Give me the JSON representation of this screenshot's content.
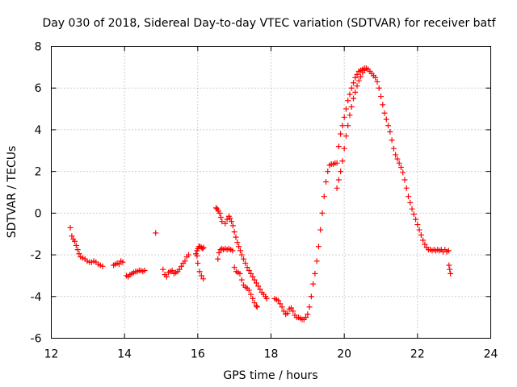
{
  "chart_data": {
    "type": "scatter",
    "title": "Day 030 of 2018, Sidereal Day-to-day VTEC variation (SDTVAR) for receiver batf",
    "xlabel": "GPS time / hours",
    "ylabel": "SDTVAR / TECUs",
    "xlim": [
      12,
      24
    ],
    "ylim": [
      -6,
      8
    ],
    "xticks": [
      "12",
      "14",
      "16",
      "18",
      "20",
      "22",
      "24"
    ],
    "yticks": [
      "-6",
      "-4",
      "-2",
      "0",
      "2",
      "4",
      "6",
      "8"
    ],
    "grid": true,
    "marker": "plus",
    "color": "#ff0000",
    "series": [
      {
        "name": "SDTVAR",
        "x": [
          12.52,
          12.56,
          12.6,
          12.64,
          12.68,
          12.72,
          12.76,
          12.8,
          12.86,
          12.92,
          12.98,
          13.04,
          13.1,
          13.16,
          13.22,
          13.28,
          13.34,
          13.4,
          13.7,
          13.75,
          13.8,
          13.85,
          13.9,
          13.95,
          14.05,
          14.1,
          14.15,
          14.2,
          14.25,
          14.3,
          14.35,
          14.4,
          14.45,
          14.5,
          14.55,
          14.85,
          15.05,
          15.1,
          15.15,
          15.2,
          15.25,
          15.3,
          15.35,
          15.4,
          15.45,
          15.5,
          15.55,
          15.6,
          15.65,
          15.7,
          15.75,
          15.95,
          15.98,
          16.0,
          16.03,
          16.06,
          16.1,
          16.13,
          16.16,
          15.98,
          16.0,
          16.05,
          16.1,
          16.15,
          16.5,
          16.53,
          16.56,
          16.6,
          16.63,
          16.66,
          16.55,
          16.58,
          16.62,
          16.66,
          16.7,
          16.75,
          16.8,
          16.85,
          16.9,
          16.95,
          16.75,
          16.8,
          16.85,
          16.88,
          16.92,
          16.96,
          17.0,
          17.04,
          17.08,
          17.12,
          17.16,
          17.2,
          17.25,
          17.3,
          17.35,
          17.4,
          17.45,
          17.5,
          17.55,
          17.6,
          17.65,
          17.7,
          17.75,
          17.8,
          17.85,
          17.88,
          17.0,
          17.05,
          17.1,
          17.15,
          17.2,
          17.25,
          17.3,
          17.35,
          17.4,
          17.45,
          17.5,
          17.55,
          17.6,
          17.62,
          18.1,
          18.15,
          18.2,
          18.25,
          18.3,
          18.35,
          18.4,
          18.45,
          18.5,
          18.55,
          18.6,
          18.65,
          18.7,
          18.75,
          18.8,
          18.85,
          18.9,
          18.95,
          19.0,
          19.05,
          19.1,
          19.15,
          19.2,
          19.25,
          19.3,
          19.35,
          19.4,
          19.45,
          19.5,
          19.55,
          19.6,
          19.65,
          19.7,
          19.75,
          19.8,
          19.85,
          19.9,
          19.95,
          20.0,
          20.05,
          20.1,
          20.15,
          20.2,
          20.25,
          20.3,
          20.35,
          20.4,
          20.45,
          20.5,
          20.55,
          20.6,
          19.8,
          19.85,
          19.9,
          19.95,
          20.0,
          20.05,
          20.1,
          20.15,
          20.2,
          20.25,
          20.3,
          20.35,
          20.4,
          20.45,
          20.5,
          20.55,
          20.65,
          20.7,
          20.75,
          20.8,
          20.85,
          20.9,
          20.95,
          21.0,
          21.05,
          21.1,
          21.15,
          21.2,
          21.25,
          21.3,
          21.35,
          21.4,
          21.45,
          21.5,
          21.55,
          21.6,
          21.65,
          21.7,
          21.75,
          21.8,
          21.85,
          21.9,
          21.95,
          22.0,
          22.05,
          22.1,
          22.15,
          22.2,
          22.25,
          22.3,
          22.35,
          22.4,
          22.45,
          22.5,
          22.55,
          22.6,
          22.65,
          22.7,
          22.75,
          22.8,
          22.85,
          22.86,
          22.88,
          22.9
        ],
        "y": [
          -0.7,
          -1.1,
          -1.25,
          -1.35,
          -1.55,
          -1.75,
          -1.95,
          -2.1,
          -2.15,
          -2.2,
          -2.3,
          -2.35,
          -2.35,
          -2.3,
          -2.35,
          -2.45,
          -2.5,
          -2.55,
          -2.5,
          -2.45,
          -2.4,
          -2.45,
          -2.3,
          -2.35,
          -3.0,
          -3.05,
          -2.95,
          -2.9,
          -2.85,
          -2.8,
          -2.8,
          -2.75,
          -2.75,
          -2.8,
          -2.75,
          -0.95,
          -2.7,
          -2.95,
          -3.05,
          -2.85,
          -2.8,
          -2.75,
          -2.9,
          -2.85,
          -2.8,
          -2.7,
          -2.55,
          -2.4,
          -2.3,
          -2.1,
          -2.0,
          -1.95,
          -1.8,
          -1.7,
          -1.6,
          -1.6,
          -1.65,
          -1.7,
          -1.65,
          -2.05,
          -2.4,
          -2.8,
          -3.0,
          -3.15,
          0.25,
          0.2,
          0.1,
          0.0,
          -0.2,
          -0.4,
          -2.2,
          -1.9,
          -1.75,
          -1.7,
          -1.75,
          -1.7,
          -1.75,
          -1.7,
          -1.75,
          -1.8,
          -0.5,
          -0.3,
          -0.15,
          -0.25,
          -0.4,
          -0.6,
          -0.9,
          -1.15,
          -1.4,
          -1.6,
          -1.8,
          -2.0,
          -2.2,
          -2.4,
          -2.6,
          -2.75,
          -2.9,
          -3.05,
          -3.2,
          -3.35,
          -3.5,
          -3.65,
          -3.8,
          -3.9,
          -4.0,
          -4.1,
          -2.6,
          -2.8,
          -2.85,
          -2.9,
          -3.2,
          -3.45,
          -3.55,
          -3.6,
          -3.7,
          -3.9,
          -4.1,
          -4.3,
          -4.45,
          -4.5,
          -4.1,
          -4.15,
          -4.2,
          -4.35,
          -4.5,
          -4.7,
          -4.85,
          -4.8,
          -4.6,
          -4.55,
          -4.7,
          -4.9,
          -5.0,
          -5.0,
          -5.05,
          -5.1,
          -5.1,
          -5.0,
          -4.85,
          -4.5,
          -4.0,
          -3.4,
          -2.9,
          -2.3,
          -1.6,
          -0.8,
          0.0,
          0.8,
          1.5,
          2.0,
          2.3,
          2.35,
          2.35,
          2.4,
          2.4,
          3.2,
          3.8,
          4.2,
          4.6,
          5.0,
          5.4,
          5.7,
          6.0,
          6.25,
          6.5,
          6.65,
          6.8,
          6.85,
          6.9,
          6.95,
          6.95,
          1.2,
          1.6,
          2.0,
          2.5,
          3.1,
          3.7,
          4.2,
          4.7,
          5.1,
          5.5,
          5.8,
          6.1,
          6.35,
          6.55,
          6.75,
          6.85,
          6.9,
          6.8,
          6.7,
          6.6,
          6.5,
          6.3,
          6.0,
          5.6,
          5.2,
          4.8,
          4.5,
          4.2,
          3.9,
          3.5,
          3.1,
          2.8,
          2.6,
          2.4,
          2.2,
          1.95,
          1.6,
          1.2,
          0.8,
          0.5,
          0.2,
          -0.05,
          -0.3,
          -0.55,
          -0.8,
          -1.05,
          -1.3,
          -1.5,
          -1.65,
          -1.75,
          -1.75,
          -1.8,
          -1.75,
          -1.8,
          -1.75,
          -1.8,
          -1.75,
          -1.85,
          -1.75,
          -1.85,
          -1.8,
          -2.5,
          -2.7,
          -2.9
        ]
      }
    ]
  }
}
